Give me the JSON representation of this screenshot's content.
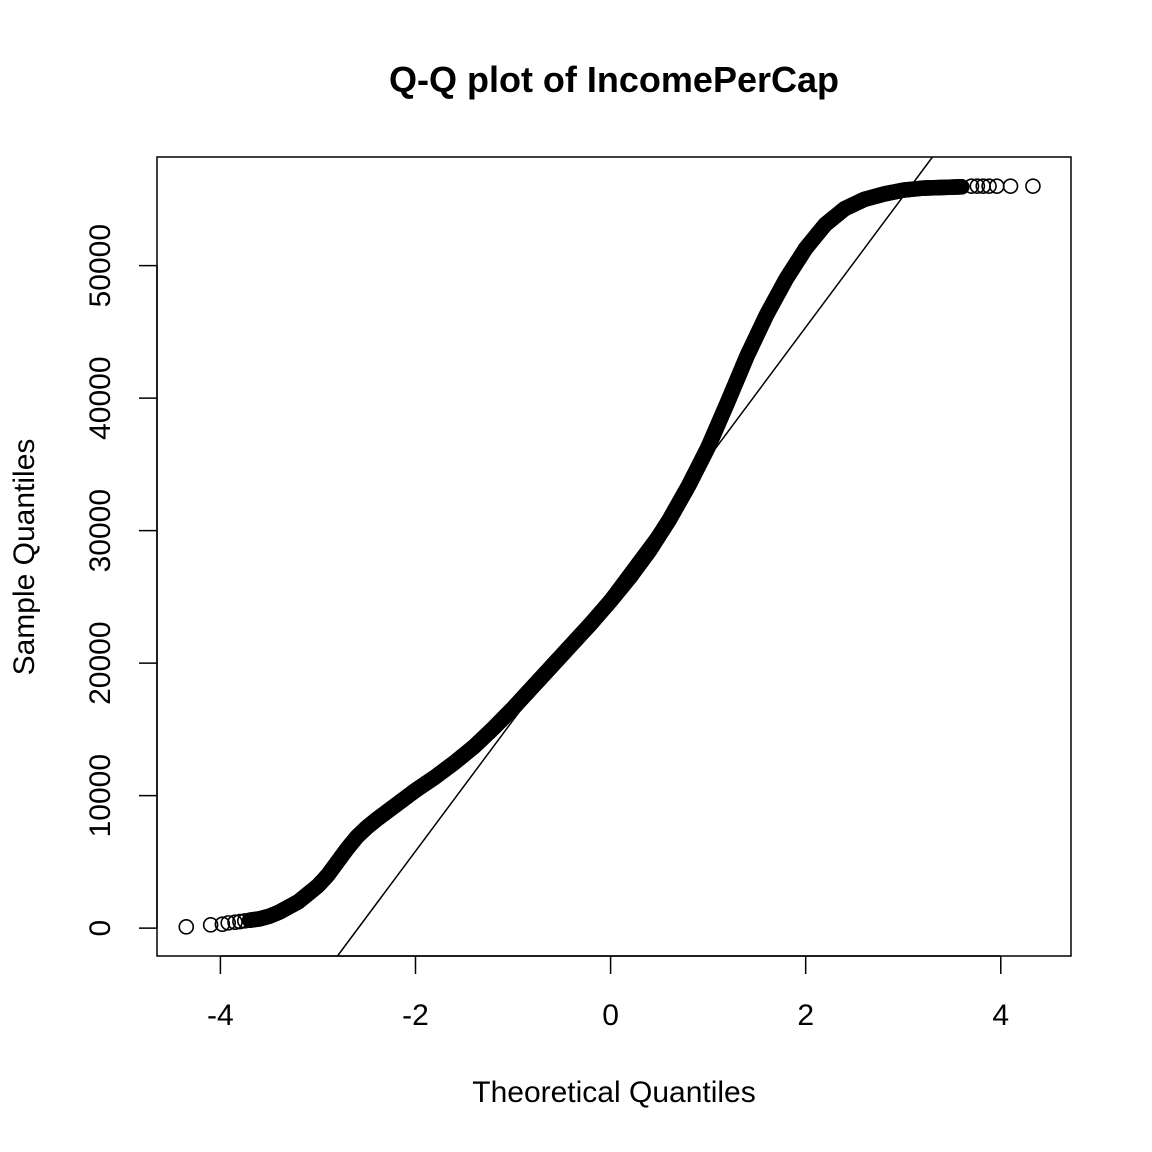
{
  "chart_data": {
    "type": "scatter",
    "title": "Q-Q plot of IncomePerCap",
    "xlabel": "Theoretical Quantiles",
    "ylabel": "Sample Quantiles",
    "xlim": [
      -4.65,
      4.72
    ],
    "ylim": [
      -2100,
      58200
    ],
    "x_ticks": [
      -4,
      -2,
      0,
      2,
      4
    ],
    "x_tick_labels": [
      "-4",
      "-2",
      "0",
      "2",
      "4"
    ],
    "y_ticks": [
      0,
      10000,
      20000,
      30000,
      40000,
      50000
    ],
    "y_tick_labels": [
      "0",
      "10000",
      "20000",
      "30000",
      "40000",
      "50000"
    ],
    "grid": false,
    "legend": "none",
    "reference_line": {
      "x": [
        -2.8,
        3.3
      ],
      "y": [
        -2100,
        58200
      ]
    },
    "series": [
      {
        "marker": "open-circle",
        "points": [
          [
            -4.35,
            100
          ],
          [
            -4.1,
            250
          ],
          [
            -3.98,
            300
          ],
          [
            -3.92,
            400
          ],
          [
            -3.85,
            450
          ],
          [
            -3.8,
            500
          ],
          [
            -3.75,
            550
          ],
          [
            -3.7,
            600
          ],
          [
            -3.65,
            650
          ],
          [
            -3.6,
            700
          ],
          [
            -3.5,
            900
          ],
          [
            -3.4,
            1200
          ],
          [
            -3.3,
            1600
          ],
          [
            -3.2,
            2000
          ],
          [
            -3.1,
            2600
          ],
          [
            -3.0,
            3200
          ],
          [
            -2.9,
            4000
          ],
          [
            -2.8,
            5000
          ],
          [
            -2.7,
            6000
          ],
          [
            -2.6,
            6900
          ],
          [
            -2.5,
            7600
          ],
          [
            -2.4,
            8200
          ],
          [
            -2.2,
            9300
          ],
          [
            -2.0,
            10400
          ],
          [
            -1.8,
            11400
          ],
          [
            -1.6,
            12500
          ],
          [
            -1.4,
            13700
          ],
          [
            -1.2,
            15100
          ],
          [
            -1.0,
            16600
          ],
          [
            -0.8,
            18200
          ],
          [
            -0.6,
            19800
          ],
          [
            -0.4,
            21400
          ],
          [
            -0.2,
            23000
          ],
          [
            0.0,
            24700
          ],
          [
            0.2,
            26500
          ],
          [
            0.4,
            28500
          ],
          [
            0.6,
            30800
          ],
          [
            0.8,
            33400
          ],
          [
            1.0,
            36300
          ],
          [
            1.2,
            39700
          ],
          [
            1.4,
            43200
          ],
          [
            1.6,
            46300
          ],
          [
            1.8,
            49000
          ],
          [
            2.0,
            51300
          ],
          [
            2.2,
            53100
          ],
          [
            2.4,
            54300
          ],
          [
            2.6,
            55000
          ],
          [
            2.8,
            55400
          ],
          [
            3.0,
            55700
          ],
          [
            3.2,
            55850
          ],
          [
            3.4,
            55900
          ],
          [
            3.6,
            55950
          ],
          [
            3.7,
            56000
          ],
          [
            3.76,
            56000
          ],
          [
            3.82,
            56000
          ],
          [
            3.88,
            56000
          ],
          [
            3.96,
            56000
          ],
          [
            4.1,
            56000
          ],
          [
            4.33,
            56000
          ]
        ]
      }
    ]
  }
}
